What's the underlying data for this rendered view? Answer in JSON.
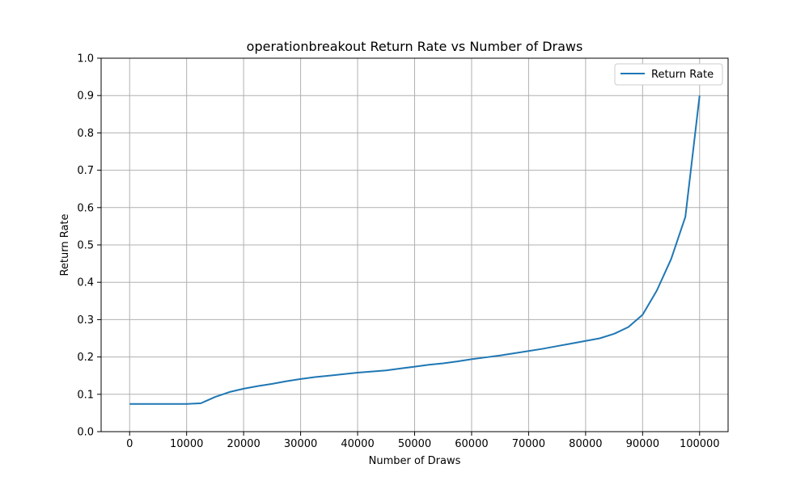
{
  "chart_data": {
    "type": "line",
    "title": "operationbreakout Return Rate vs Number of Draws",
    "xlabel": "Number of Draws",
    "ylabel": "Return Rate",
    "xlim": [
      -5000,
      105000
    ],
    "ylim": [
      0.0,
      1.0
    ],
    "xticks": [
      0,
      10000,
      20000,
      30000,
      40000,
      50000,
      60000,
      70000,
      80000,
      90000,
      100000
    ],
    "xtick_labels": [
      "0",
      "10000",
      "20000",
      "30000",
      "40000",
      "50000",
      "60000",
      "70000",
      "80000",
      "90000",
      "100000"
    ],
    "yticks": [
      0.0,
      0.1,
      0.2,
      0.3,
      0.4,
      0.5,
      0.6,
      0.7,
      0.8,
      0.9,
      1.0
    ],
    "ytick_labels": [
      "0.0",
      "0.1",
      "0.2",
      "0.3",
      "0.4",
      "0.5",
      "0.6",
      "0.7",
      "0.8",
      "0.9",
      "1.0"
    ],
    "grid": true,
    "legend": {
      "position": "top-right",
      "entries": [
        "Return Rate"
      ]
    },
    "series": [
      {
        "name": "Return Rate",
        "color": "#1f77b4",
        "x": [
          0,
          2500,
          5000,
          7500,
          10000,
          12500,
          15000,
          17500,
          20000,
          22500,
          25000,
          27500,
          30000,
          32500,
          35000,
          37500,
          40000,
          42500,
          45000,
          47500,
          50000,
          52500,
          55000,
          57500,
          60000,
          62500,
          65000,
          67500,
          70000,
          72500,
          75000,
          77500,
          80000,
          82500,
          85000,
          87500,
          90000,
          92500,
          95000,
          97500,
          100000
        ],
        "y": [
          0.074,
          0.074,
          0.074,
          0.074,
          0.074,
          0.076,
          0.093,
          0.106,
          0.115,
          0.122,
          0.128,
          0.135,
          0.141,
          0.146,
          0.15,
          0.154,
          0.158,
          0.161,
          0.164,
          0.169,
          0.174,
          0.179,
          0.183,
          0.188,
          0.194,
          0.199,
          0.204,
          0.21,
          0.216,
          0.222,
          0.229,
          0.236,
          0.243,
          0.25,
          0.262,
          0.28,
          0.313,
          0.378,
          0.462,
          0.575,
          0.9
        ]
      }
    ]
  }
}
